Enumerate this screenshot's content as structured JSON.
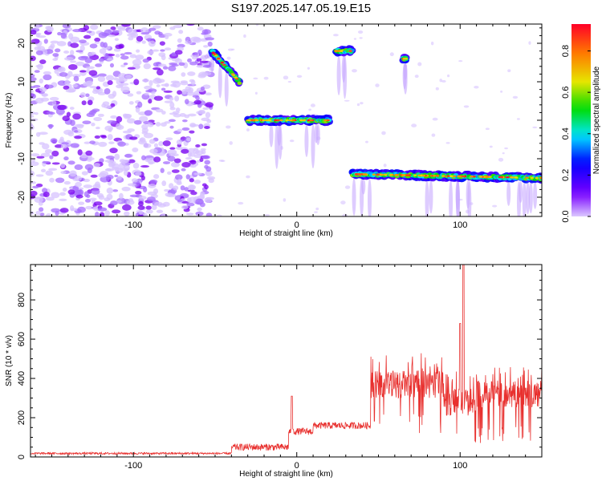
{
  "title": "S197.2025.147.05.19.E15",
  "chart_data": [
    {
      "type": "heatmap",
      "xlabel": "Height of straight line (km)",
      "ylabel": "Frequency (Hz)",
      "xlim": [
        -163,
        150
      ],
      "ylim": [
        -25,
        25
      ],
      "xticks": [
        -100,
        0,
        100
      ],
      "yticks": [
        -20,
        -10,
        0,
        10,
        20
      ],
      "colorbar": {
        "label": "Normalized spectral amplitude",
        "range": [
          0,
          0.93
        ],
        "ticks": [
          "0.0",
          "0.2",
          "0.4",
          "0.6",
          "0.8"
        ],
        "colormap": "rainbow (purple to red)"
      },
      "noise_region_x": [
        -163,
        -52
      ],
      "series": [
        {
          "x": [
            -52,
            -35
          ],
          "y": [
            18,
            10
          ]
        },
        {
          "x": [
            -30,
            20
          ],
          "y": [
            0,
            0
          ]
        },
        {
          "x": [
            24,
            34
          ],
          "y": [
            18,
            18
          ]
        },
        {
          "x": [
            65,
            67
          ],
          "y": [
            16,
            16
          ]
        },
        {
          "x": [
            34,
            150
          ],
          "y": [
            -14,
            -15
          ]
        }
      ]
    },
    {
      "type": "line",
      "xlabel": "Height of straight line (km)",
      "ylabel": "SNR (10 * v/v)",
      "xlim": [
        -163,
        150
      ],
      "ylim": [
        0,
        980
      ],
      "xticks": [
        -100,
        0,
        100
      ],
      "yticks": [
        0,
        200,
        400,
        600,
        800
      ],
      "color": "#e8302e",
      "levels": [
        {
          "x": [
            -163,
            -40
          ],
          "y": 18
        },
        {
          "x": [
            -40,
            -5
          ],
          "y": 50
        },
        {
          "x": [
            -5,
            10
          ],
          "y": 130
        },
        {
          "x": [
            10,
            45
          ],
          "y": 160
        },
        {
          "x": [
            45,
            90
          ],
          "y": 370
        },
        {
          "x": [
            90,
            110
          ],
          "y": 280
        },
        {
          "x": [
            110,
            150
          ],
          "y": 320
        }
      ],
      "peaks": [
        {
          "x": -3,
          "y": 310
        },
        {
          "x": 100,
          "y": 680
        },
        {
          "x": 102,
          "y": 980
        }
      ]
    }
  ]
}
